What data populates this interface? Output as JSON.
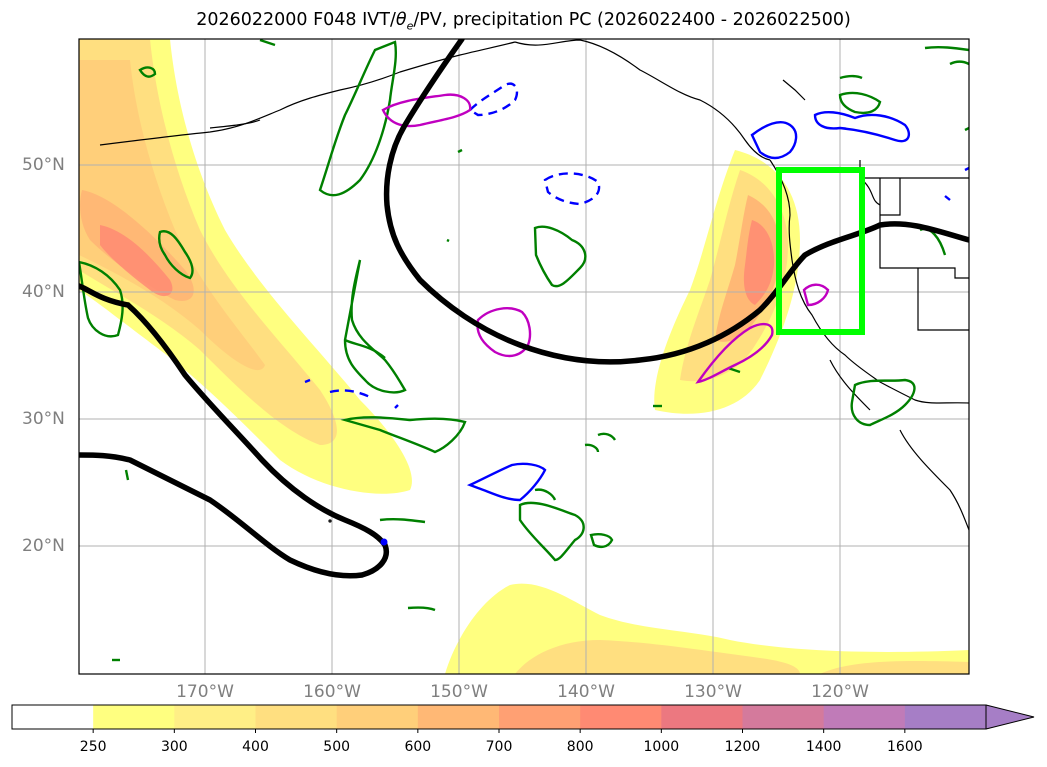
{
  "title": {
    "prefix": "2026022000 F048 IVT/",
    "theta": "θ",
    "theta_sub": "e",
    "suffix": "/PV, precipitation PC (2026022400 - 2026022500)"
  },
  "lat_labels": [
    "50°N",
    "40°N",
    "30°N",
    "20°N"
  ],
  "lon_labels": [
    "170°W",
    "160°W",
    "150°W",
    "140°W",
    "130°W",
    "120°W"
  ],
  "colorbar": {
    "ticks": [
      "250",
      "300",
      "400",
      "500",
      "600",
      "700",
      "800",
      "1000",
      "1200",
      "1400",
      "1600"
    ],
    "colors": [
      "#ffffff",
      "#ffff80",
      "#ffef86",
      "#ffdf80",
      "#ffcf7a",
      "#ffb875",
      "#ffa073",
      "#ff8a73",
      "#ec7880",
      "#d47a9c",
      "#c07bb8",
      "#a67ec6"
    ]
  },
  "colors": {
    "ivt_contour": "#000000",
    "theta_e": "#008000",
    "pv_positive": "#0000ff",
    "pv_magenta": "#c000c0",
    "box": "#00ff00",
    "grid": "#b0b0b0",
    "coast": "#000000"
  }
}
